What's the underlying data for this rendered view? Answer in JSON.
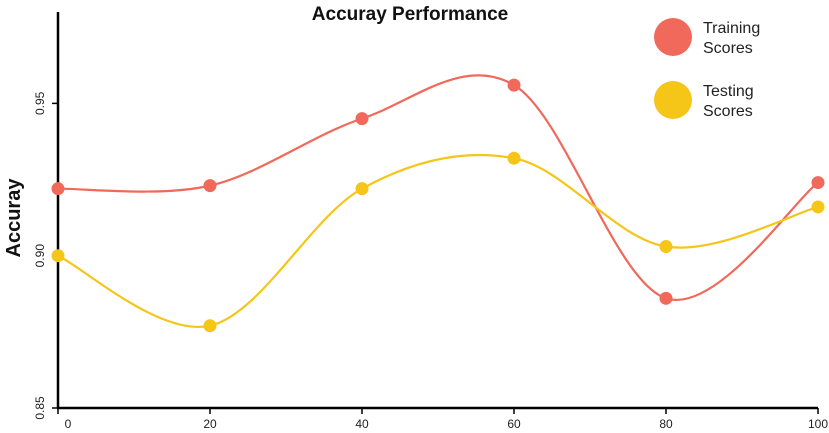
{
  "chart_data": {
    "type": "line",
    "title": "Accuray Performance",
    "xlabel": "",
    "ylabel": "Accuray",
    "x": [
      0,
      20,
      40,
      60,
      80,
      100
    ],
    "xticks": [
      "0",
      "20",
      "40",
      "60",
      "80",
      "100"
    ],
    "yticks": [
      "0.85",
      "0.90",
      "0.95"
    ],
    "ylim": [
      0.85,
      0.98
    ],
    "xlim": [
      0,
      100
    ],
    "grid": false,
    "legend_position": "top-right",
    "series": [
      {
        "name": "Training Scores",
        "color": "#F0695A",
        "values": [
          0.922,
          0.923,
          0.945,
          0.956,
          0.886,
          0.924
        ]
      },
      {
        "name": "Testing Scores",
        "color": "#F5C518",
        "values": [
          0.9,
          0.877,
          0.922,
          0.932,
          0.903,
          0.916
        ]
      }
    ],
    "legend_labels": [
      [
        "Training",
        "Scores"
      ],
      [
        "Testing",
        "Scores"
      ]
    ]
  }
}
